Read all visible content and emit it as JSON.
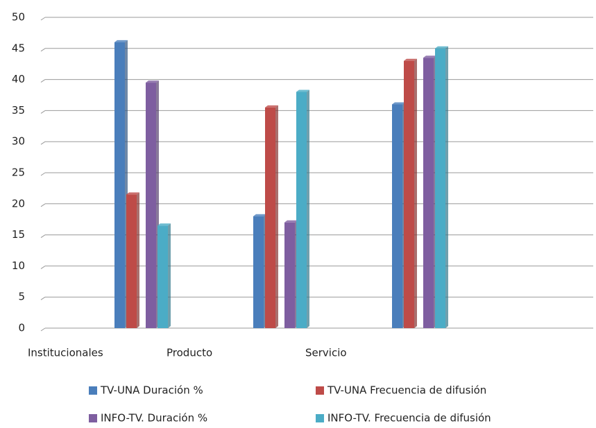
{
  "chart_data": {
    "type": "bar",
    "categories": [
      "Institucionales",
      "Producto",
      "Servicio"
    ],
    "series": [
      {
        "name": "TV-UNA Duración %",
        "color": "#4a7ebb",
        "values": [
          46,
          18,
          36
        ]
      },
      {
        "name": "TV-UNA Frecuencia de difusión",
        "color": "#be4b48",
        "values": [
          21.5,
          35.5,
          43
        ]
      },
      {
        "name": "INFO-TV. Duración %",
        "color": "#7e5ea0",
        "values": [
          39.5,
          17,
          43.5
        ]
      },
      {
        "name": "INFO-TV. Frecuencia de difusión",
        "color": "#4bacc6",
        "values": [
          16.5,
          38,
          45
        ]
      }
    ],
    "ylim": [
      0,
      50
    ],
    "yticks": [
      0,
      5,
      10,
      15,
      20,
      25,
      30,
      35,
      40,
      45,
      50
    ],
    "grid": true
  }
}
